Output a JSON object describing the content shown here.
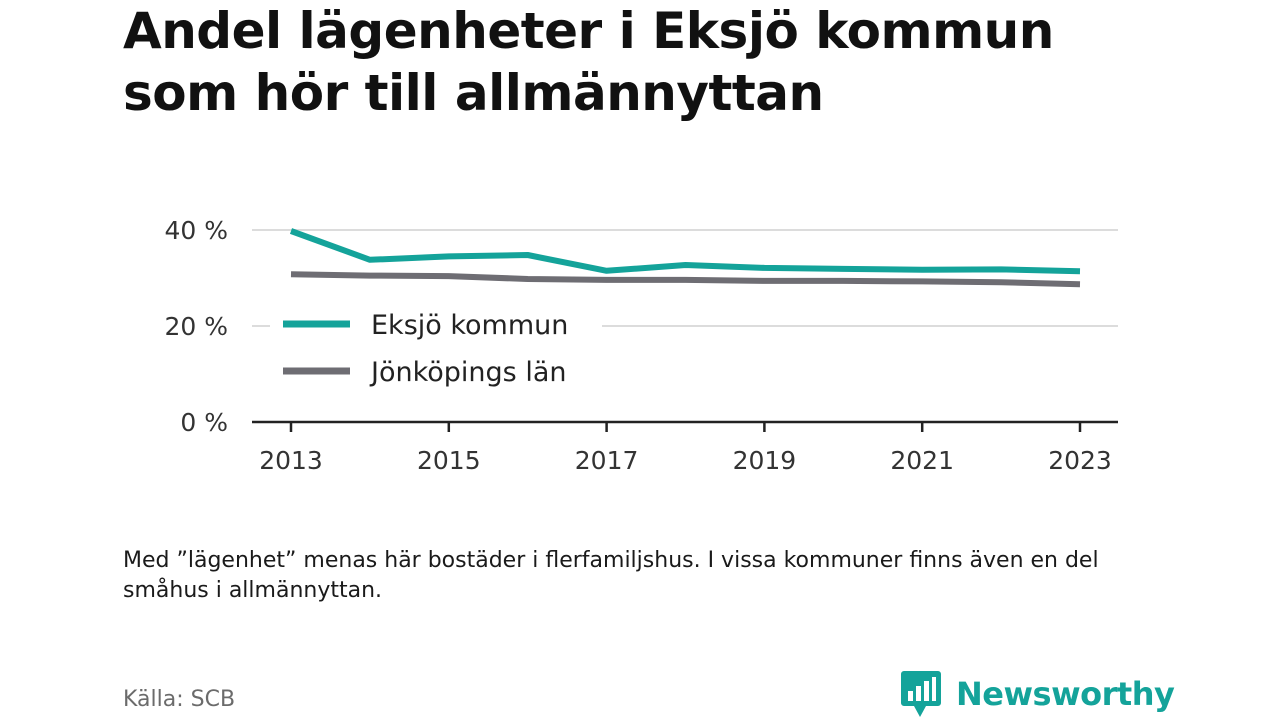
{
  "title": "Andel lägenheter i Eksjö kommun som hör till allmännyttan",
  "note": "Med ”lägenhet” menas här bostäder i flerfamiljshus. I vissa kommuner finns även en del småhus i allmännyttan.",
  "source": "Källa: SCB",
  "brand": {
    "name": "Newsworthy",
    "icon": "newsworthy-logo-icon",
    "color": "#14a39a"
  },
  "chart_data": {
    "type": "line",
    "title": "Andel lägenheter i Eksjö kommun som hör till allmännyttan",
    "x": [
      2013,
      2014,
      2015,
      2016,
      2017,
      2018,
      2019,
      2020,
      2021,
      2022,
      2023
    ],
    "xticks": [
      "2013",
      "2015",
      "2017",
      "2019",
      "2021",
      "2023"
    ],
    "yticks": [
      "0 %",
      "20 %",
      "40 %"
    ],
    "ylim": [
      0,
      40
    ],
    "grid": true,
    "legend": "inside-middle-left",
    "series": [
      {
        "name": "Eksjö kommun",
        "color": "#14a39a",
        "values": [
          39.8,
          33.8,
          34.5,
          34.8,
          31.5,
          32.7,
          32.1,
          31.9,
          31.7,
          31.8,
          31.4
        ]
      },
      {
        "name": "Jönköpings län",
        "color": "#6e6d73",
        "values": [
          30.8,
          30.5,
          30.4,
          29.8,
          29.6,
          29.6,
          29.4,
          29.4,
          29.3,
          29.1,
          28.7
        ]
      }
    ]
  }
}
